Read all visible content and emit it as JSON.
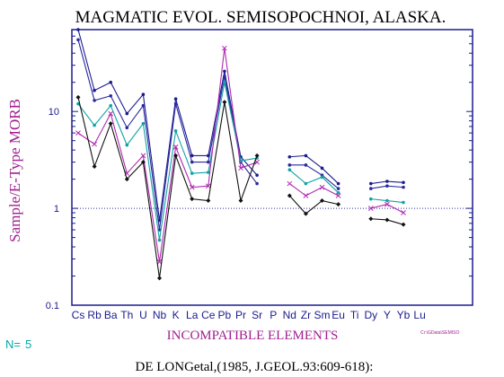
{
  "colors": {
    "axis": "#1b1b8f",
    "tick_label": "#1b1b8f",
    "ylabel": "#a0208f",
    "xlabel": "#a0208f",
    "ref_line": "#2f2fa8",
    "footer": "#00a8a8",
    "legend": "#a0208f"
  },
  "chart_data": {
    "type": "line",
    "title": "MAGMATIC EVOL. SEMISOPOCHNOI, ALASKA.",
    "xlabel": "INCOMPATIBLE ELEMENTS",
    "ylabel": "Sample/E-Type MORB",
    "yscale": "log",
    "ylim": [
      0.1,
      70
    ],
    "ytick_labels": [
      "0.1",
      "1",
      "10"
    ],
    "ytick_values": [
      0.1,
      1,
      10
    ],
    "ref_line_y": 1,
    "categories": [
      "Cs",
      "Rb",
      "Ba",
      "Th",
      "U",
      "Nb",
      "K",
      "La",
      "Ce",
      "Pb",
      "Pr",
      "Sr",
      "P",
      "Nd",
      "Zr",
      "Sm",
      "Eu",
      "Ti",
      "Dy",
      "Y",
      "Yb",
      "Lu"
    ],
    "series": [
      {
        "color": "#1b1b8f",
        "marker": "dot",
        "values": [
          70,
          16.5,
          20,
          9.5,
          15,
          0.75,
          13.5,
          3.5,
          3.5,
          26,
          3.4,
          2.2,
          null,
          3.4,
          3.5,
          2.6,
          1.8,
          null,
          1.8,
          1.9,
          1.85,
          null
        ]
      },
      {
        "color": "#2a2a9e",
        "marker": "dot",
        "values": [
          55,
          13,
          14.5,
          6.8,
          11.5,
          0.6,
          12,
          3.0,
          3.0,
          23,
          3.0,
          1.8,
          null,
          2.8,
          2.8,
          2.2,
          1.6,
          null,
          1.6,
          1.7,
          1.65,
          null
        ]
      },
      {
        "color": "#10a3a3",
        "marker": "dot",
        "values": [
          12,
          7.2,
          11.5,
          4.5,
          7.5,
          0.47,
          6.3,
          2.3,
          2.35,
          20,
          3.1,
          3.3,
          null,
          2.5,
          1.8,
          2.1,
          1.45,
          null,
          1.25,
          1.2,
          1.15,
          null
        ]
      },
      {
        "color": "#b02ab0",
        "marker": "x",
        "values": [
          6.0,
          4.6,
          9.5,
          2.3,
          3.5,
          0.28,
          4.3,
          1.65,
          1.7,
          45,
          2.6,
          3.0,
          null,
          1.8,
          1.35,
          1.65,
          1.35,
          null,
          1.0,
          1.1,
          0.9,
          null
        ]
      },
      {
        "color": "#111111",
        "marker": "diamond",
        "values": [
          14,
          2.7,
          7.5,
          2.0,
          3.0,
          0.19,
          3.5,
          1.25,
          1.2,
          12.5,
          1.2,
          3.5,
          null,
          1.35,
          0.88,
          1.2,
          1.1,
          null,
          0.78,
          0.76,
          0.68,
          null
        ]
      }
    ]
  },
  "footer": {
    "n_label": "N=",
    "n_value": "5",
    "legend_note": "Cr:\\GData\\SEMISO",
    "citation": "DE LONGetal,(1985, J.GEOL.93:609-618):"
  }
}
